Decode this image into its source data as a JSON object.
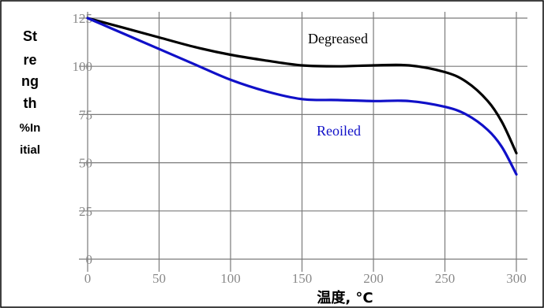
{
  "chart_data": {
    "type": "line",
    "xlabel": "温度, °C",
    "ylabel_lines": [
      "St",
      "re",
      "ng",
      "th",
      "%In",
      "itial"
    ],
    "xlim": [
      0,
      300
    ],
    "ylim": [
      0,
      125
    ],
    "x_ticks": [
      0,
      50,
      100,
      150,
      200,
      250,
      300
    ],
    "y_ticks": [
      0,
      25,
      50,
      75,
      100,
      125
    ],
    "grid": true,
    "series": [
      {
        "name": "Degreased",
        "color": "#000000",
        "x": [
          0,
          25,
          50,
          75,
          100,
          125,
          150,
          175,
          200,
          225,
          250,
          265,
          280,
          290,
          300
        ],
        "y": [
          125,
          120,
          115,
          110,
          106,
          103,
          100.5,
          100,
          100.5,
          100.5,
          97,
          92,
          82,
          71,
          55
        ]
      },
      {
        "name": "Reoiled",
        "color": "#1010c8",
        "x": [
          0,
          25,
          50,
          75,
          100,
          125,
          150,
          175,
          200,
          225,
          250,
          265,
          280,
          290,
          300
        ],
        "y": [
          125,
          117,
          109,
          101,
          93,
          87,
          83,
          82.5,
          82,
          82,
          79,
          75,
          67,
          58,
          44
        ]
      }
    ]
  }
}
